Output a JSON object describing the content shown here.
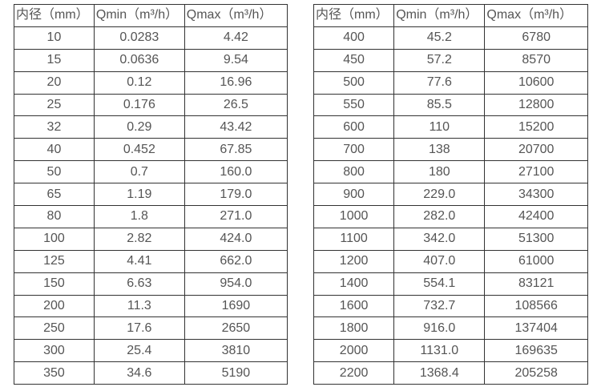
{
  "page": {
    "background_color": "#ffffff",
    "text_color": "#555555",
    "border_color": "#333333"
  },
  "tables": [
    {
      "headers": [
        "内径（mm）",
        "Qmin（m³/h）",
        "Qmax（m³/h）"
      ],
      "rows": [
        [
          "10",
          "0.0283",
          "4.42"
        ],
        [
          "15",
          "0.0636",
          "9.54"
        ],
        [
          "20",
          "0.12",
          "16.96"
        ],
        [
          "25",
          "0.176",
          "26.5"
        ],
        [
          "32",
          "0.29",
          "43.42"
        ],
        [
          "40",
          "0.452",
          "67.85"
        ],
        [
          "50",
          "0.7",
          "160.0"
        ],
        [
          "65",
          "1.19",
          "179.0"
        ],
        [
          "80",
          "1.8",
          "271.0"
        ],
        [
          "100",
          "2.82",
          "424.0"
        ],
        [
          "125",
          "4.41",
          "662.0"
        ],
        [
          "150",
          "6.63",
          "954.0"
        ],
        [
          "200",
          "11.3",
          "1690"
        ],
        [
          "250",
          "17.6",
          "2650"
        ],
        [
          "300",
          "25.4",
          "3810"
        ],
        [
          "350",
          "34.6",
          "5190"
        ]
      ]
    },
    {
      "headers": [
        "内径（mm）",
        "Qmin（m³/h）",
        "Qmax（m³/h）"
      ],
      "rows": [
        [
          "400",
          "45.2",
          "6780"
        ],
        [
          "450",
          "57.2",
          "8570"
        ],
        [
          "500",
          "77.6",
          "10600"
        ],
        [
          "550",
          "85.5",
          "12800"
        ],
        [
          "600",
          "110",
          "15200"
        ],
        [
          "700",
          "138",
          "20700"
        ],
        [
          "800",
          "180",
          "27100"
        ],
        [
          "900",
          "229.0",
          "34300"
        ],
        [
          "1000",
          "282.0",
          "42400"
        ],
        [
          "1100",
          "342.0",
          "51300"
        ],
        [
          "1200",
          "407.0",
          "61000"
        ],
        [
          "1400",
          "554.1",
          "83121"
        ],
        [
          "1600",
          "732.7",
          "108566"
        ],
        [
          "1800",
          "916.0",
          "137404"
        ],
        [
          "2000",
          "1131.0",
          "169635"
        ],
        [
          "2200",
          "1368.4",
          "205258"
        ]
      ]
    }
  ],
  "chart_data": {
    "type": "table",
    "title": "",
    "columns": [
      "内径（mm）",
      "Qmin（m³/h）",
      "Qmax（m³/h）"
    ],
    "rows": [
      [
        10,
        0.0283,
        4.42
      ],
      [
        15,
        0.0636,
        9.54
      ],
      [
        20,
        0.12,
        16.96
      ],
      [
        25,
        0.176,
        26.5
      ],
      [
        32,
        0.29,
        43.42
      ],
      [
        40,
        0.452,
        67.85
      ],
      [
        50,
        0.7,
        160.0
      ],
      [
        65,
        1.19,
        179.0
      ],
      [
        80,
        1.8,
        271.0
      ],
      [
        100,
        2.82,
        424.0
      ],
      [
        125,
        4.41,
        662.0
      ],
      [
        150,
        6.63,
        954.0
      ],
      [
        200,
        11.3,
        1690
      ],
      [
        250,
        17.6,
        2650
      ],
      [
        300,
        25.4,
        3810
      ],
      [
        350,
        34.6,
        5190
      ],
      [
        400,
        45.2,
        6780
      ],
      [
        450,
        57.2,
        8570
      ],
      [
        500,
        77.6,
        10600
      ],
      [
        550,
        85.5,
        12800
      ],
      [
        600,
        110,
        15200
      ],
      [
        700,
        138,
        20700
      ],
      [
        800,
        180,
        27100
      ],
      [
        900,
        229.0,
        34300
      ],
      [
        1000,
        282.0,
        42400
      ],
      [
        1100,
        342.0,
        51300
      ],
      [
        1200,
        407.0,
        61000
      ],
      [
        1400,
        554.1,
        83121
      ],
      [
        1600,
        732.7,
        108566
      ],
      [
        1800,
        916.0,
        137404
      ],
      [
        2000,
        1131.0,
        169635
      ],
      [
        2200,
        1368.4,
        205258
      ]
    ]
  }
}
